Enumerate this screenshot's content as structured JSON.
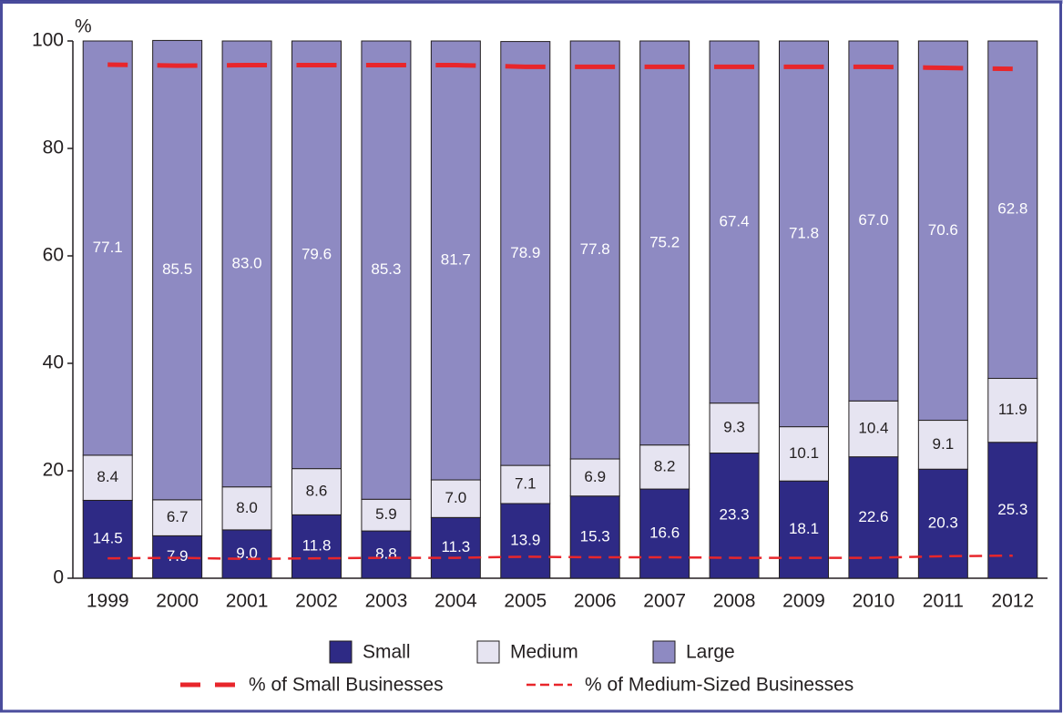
{
  "chart_data": {
    "type": "stacked_bar_line",
    "y_label": "%",
    "categories": [
      "1999",
      "2000",
      "2001",
      "2002",
      "2003",
      "2004",
      "2005",
      "2006",
      "2007",
      "2008",
      "2009",
      "2010",
      "2011",
      "2012"
    ],
    "series": [
      {
        "name": "Small",
        "color": "#2e2a85",
        "label_color": "#ffffff",
        "values": [
          14.5,
          7.9,
          9.0,
          11.8,
          8.8,
          11.3,
          13.9,
          15.3,
          16.6,
          23.3,
          18.1,
          22.6,
          20.3,
          25.3
        ],
        "value_labels": [
          "14.5",
          "7.9",
          "9.0",
          "11.8",
          "8.8",
          "11.3",
          "13.9",
          "15.3",
          "16.6",
          "23.3",
          "18.1",
          "22.6",
          "20.3",
          "25.3"
        ]
      },
      {
        "name": "Medium",
        "color": "#e6e4f1",
        "label_color": "#231f20",
        "values": [
          8.4,
          6.7,
          8.0,
          8.6,
          5.9,
          7.0,
          7.1,
          6.9,
          8.2,
          9.3,
          10.1,
          10.4,
          9.1,
          11.9
        ],
        "value_labels": [
          "8.4",
          "6.7",
          "8.0",
          "8.6",
          "5.9",
          "7.0",
          "7.1",
          "6.9",
          "8.2",
          "9.3",
          "10.1",
          "10.4",
          "9.1",
          "11.9"
        ]
      },
      {
        "name": "Large",
        "color": "#8e8ac2",
        "label_color": "#ffffff",
        "values": [
          77.1,
          85.5,
          83.0,
          79.6,
          85.3,
          81.7,
          78.9,
          77.8,
          75.2,
          67.4,
          71.8,
          67.0,
          70.6,
          62.8
        ],
        "value_labels": [
          "77.1",
          "85.5",
          "83.0",
          "79.6",
          "85.3",
          "81.7",
          "78.9",
          "77.8",
          "75.2",
          "67.4",
          "71.8",
          "67.0",
          "70.6",
          "62.8"
        ]
      }
    ],
    "lines": [
      {
        "name": "% of Small Businesses",
        "color": "#e8262b",
        "style": "thick-dashed",
        "values": [
          95.6,
          95.4,
          95.5,
          95.5,
          95.5,
          95.5,
          95.2,
          95.2,
          95.2,
          95.2,
          95.2,
          95.2,
          95.0,
          94.8
        ]
      },
      {
        "name": "% of Medium-Sized Businesses",
        "color": "#e8262b",
        "style": "thin-dashed",
        "values": [
          3.7,
          3.8,
          3.6,
          3.7,
          3.8,
          3.8,
          4.0,
          3.9,
          3.9,
          3.8,
          3.8,
          3.8,
          4.1,
          4.2
        ]
      }
    ],
    "ylim": [
      0,
      100
    ],
    "yticks": [
      0,
      20,
      40,
      60,
      80,
      100
    ],
    "grid": false
  }
}
